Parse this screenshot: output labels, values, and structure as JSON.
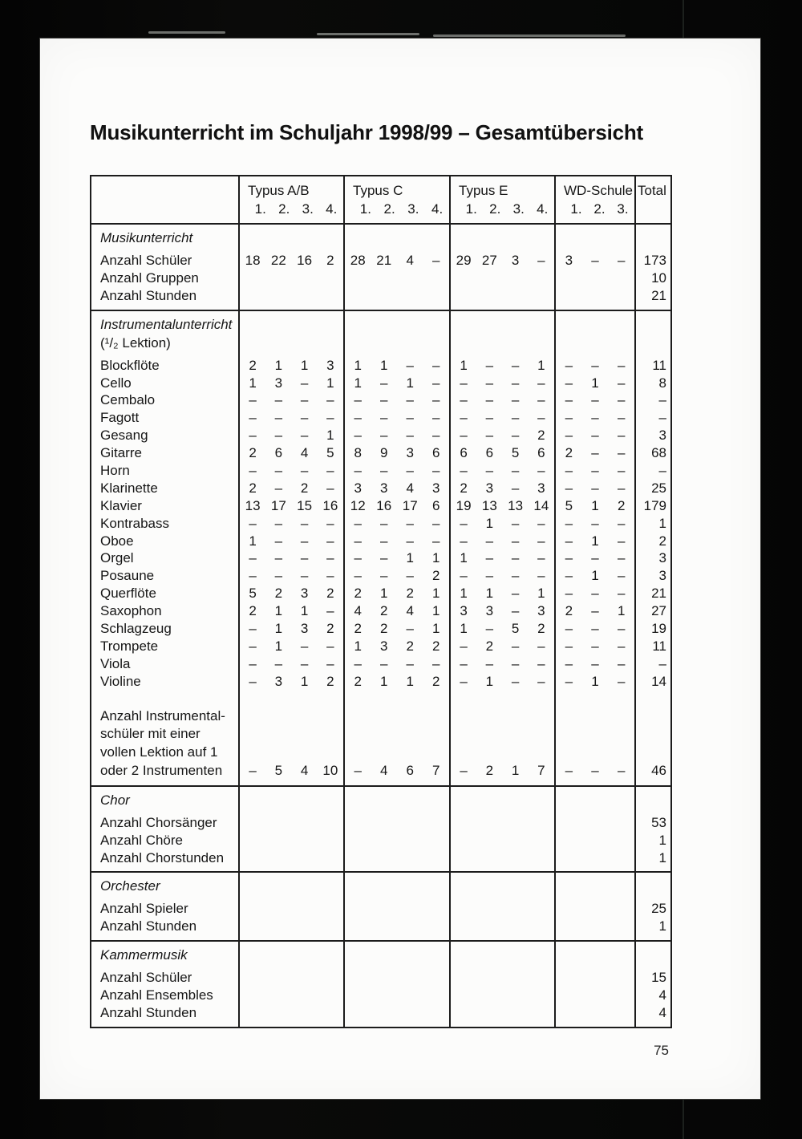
{
  "page": {
    "title": "Musikunterricht im Schuljahr 1998/99 – Gesamtübersicht",
    "page_number": "75"
  },
  "table": {
    "header": {
      "groups": [
        {
          "label": "Typus A/B",
          "subs": [
            "1.",
            "2.",
            "3.",
            "4."
          ]
        },
        {
          "label": "Typus C",
          "subs": [
            "1.",
            "2.",
            "3.",
            "4."
          ]
        },
        {
          "label": "Typus E",
          "subs": [
            "1.",
            "2.",
            "3.",
            "4."
          ]
        },
        {
          "label": "WD-Schule",
          "subs": [
            "1.",
            "2.",
            "3."
          ]
        }
      ],
      "total_label": "Total"
    },
    "sections": [
      {
        "name": "musikunterricht",
        "title": "Musikunterricht",
        "rows": [
          {
            "label": "Anzahl Schüler",
            "values": [
              [
                "18",
                "22",
                "16",
                "2"
              ],
              [
                "28",
                "21",
                "4",
                "–"
              ],
              [
                "29",
                "27",
                "3",
                "–"
              ],
              [
                "3",
                "–",
                "–"
              ]
            ],
            "total": "173"
          },
          {
            "label": "Anzahl Gruppen",
            "total": "10"
          },
          {
            "label": "Anzahl Stunden",
            "total": "21"
          }
        ]
      },
      {
        "name": "instrumentalunterricht",
        "title": "Instrumentalunterricht",
        "subtitle": "(¹/₂ Lektion)",
        "rows": [
          {
            "label": "Blockflöte",
            "values": [
              [
                "2",
                "1",
                "1",
                "3"
              ],
              [
                "1",
                "1",
                "–",
                "–"
              ],
              [
                "1",
                "–",
                "–",
                "1"
              ],
              [
                "–",
                "–",
                "–"
              ]
            ],
            "total": "11"
          },
          {
            "label": "Cello",
            "values": [
              [
                "1",
                "3",
                "–",
                "1"
              ],
              [
                "1",
                "–",
                "1",
                "–"
              ],
              [
                "–",
                "–",
                "–",
                "–"
              ],
              [
                "–",
                "1",
                "–"
              ]
            ],
            "total": "8"
          },
          {
            "label": "Cembalo",
            "values": [
              [
                "–",
                "–",
                "–",
                "–"
              ],
              [
                "–",
                "–",
                "–",
                "–"
              ],
              [
                "–",
                "–",
                "–",
                "–"
              ],
              [
                "–",
                "–",
                "–"
              ]
            ],
            "total": "–"
          },
          {
            "label": "Fagott",
            "values": [
              [
                "–",
                "–",
                "–",
                "–"
              ],
              [
                "–",
                "–",
                "–",
                "–"
              ],
              [
                "–",
                "–",
                "–",
                "–"
              ],
              [
                "–",
                "–",
                "–"
              ]
            ],
            "total": "–"
          },
          {
            "label": "Gesang",
            "values": [
              [
                "–",
                "–",
                "–",
                "1"
              ],
              [
                "–",
                "–",
                "–",
                "–"
              ],
              [
                "–",
                "–",
                "–",
                "2"
              ],
              [
                "–",
                "–",
                "–"
              ]
            ],
            "total": "3"
          },
          {
            "label": "Gitarre",
            "values": [
              [
                "2",
                "6",
                "4",
                "5"
              ],
              [
                "8",
                "9",
                "3",
                "6"
              ],
              [
                "6",
                "6",
                "5",
                "6"
              ],
              [
                "2",
                "–",
                "–"
              ]
            ],
            "total": "68"
          },
          {
            "label": "Horn",
            "values": [
              [
                "–",
                "–",
                "–",
                "–"
              ],
              [
                "–",
                "–",
                "–",
                "–"
              ],
              [
                "–",
                "–",
                "–",
                "–"
              ],
              [
                "–",
                "–",
                "–"
              ]
            ],
            "total": "–"
          },
          {
            "label": "Klarinette",
            "values": [
              [
                "2",
                "–",
                "2",
                "–"
              ],
              [
                "3",
                "3",
                "4",
                "3"
              ],
              [
                "2",
                "3",
                "–",
                "3"
              ],
              [
                "–",
                "–",
                "–"
              ]
            ],
            "total": "25"
          },
          {
            "label": "Klavier",
            "values": [
              [
                "13",
                "17",
                "15",
                "16"
              ],
              [
                "12",
                "16",
                "17",
                "6"
              ],
              [
                "19",
                "13",
                "13",
                "14"
              ],
              [
                "5",
                "1",
                "2"
              ]
            ],
            "total": "179"
          },
          {
            "label": "Kontrabass",
            "values": [
              [
                "–",
                "–",
                "–",
                "–"
              ],
              [
                "–",
                "–",
                "–",
                "–"
              ],
              [
                "–",
                "1",
                "–",
                "–"
              ],
              [
                "–",
                "–",
                "–"
              ]
            ],
            "total": "1"
          },
          {
            "label": "Oboe",
            "values": [
              [
                "1",
                "–",
                "–",
                "–"
              ],
              [
                "–",
                "–",
                "–",
                "–"
              ],
              [
                "–",
                "–",
                "–",
                "–"
              ],
              [
                "–",
                "1",
                "–"
              ]
            ],
            "total": "2"
          },
          {
            "label": "Orgel",
            "values": [
              [
                "–",
                "–",
                "–",
                "–"
              ],
              [
                "–",
                "–",
                "1",
                "1"
              ],
              [
                "1",
                "–",
                "–",
                "–"
              ],
              [
                "–",
                "–",
                "–"
              ]
            ],
            "total": "3"
          },
          {
            "label": "Posaune",
            "values": [
              [
                "–",
                "–",
                "–",
                "–"
              ],
              [
                "–",
                "–",
                "–",
                "2"
              ],
              [
                "–",
                "–",
                "–",
                "–"
              ],
              [
                "–",
                "1",
                "–"
              ]
            ],
            "total": "3"
          },
          {
            "label": "Querflöte",
            "values": [
              [
                "5",
                "2",
                "3",
                "2"
              ],
              [
                "2",
                "1",
                "2",
                "1"
              ],
              [
                "1",
                "1",
                "–",
                "1"
              ],
              [
                "–",
                "–",
                "–"
              ]
            ],
            "total": "21"
          },
          {
            "label": "Saxophon",
            "values": [
              [
                "2",
                "1",
                "1",
                "–"
              ],
              [
                "4",
                "2",
                "4",
                "1"
              ],
              [
                "3",
                "3",
                "–",
                "3"
              ],
              [
                "2",
                "–",
                "1"
              ]
            ],
            "total": "27"
          },
          {
            "label": "Schlagzeug",
            "values": [
              [
                "–",
                "1",
                "3",
                "2"
              ],
              [
                "2",
                "2",
                "–",
                "1"
              ],
              [
                "1",
                "–",
                "5",
                "2"
              ],
              [
                "–",
                "–",
                "–"
              ]
            ],
            "total": "19"
          },
          {
            "label": "Trompete",
            "values": [
              [
                "–",
                "1",
                "–",
                "–"
              ],
              [
                "1",
                "3",
                "2",
                "2"
              ],
              [
                "–",
                "2",
                "–",
                "–"
              ],
              [
                "–",
                "–",
                "–"
              ]
            ],
            "total": "11"
          },
          {
            "label": "Viola",
            "values": [
              [
                "–",
                "–",
                "–",
                "–"
              ],
              [
                "–",
                "–",
                "–",
                "–"
              ],
              [
                "–",
                "–",
                "–",
                "–"
              ],
              [
                "–",
                "–",
                "–"
              ]
            ],
            "total": "–"
          },
          {
            "label": "Violine",
            "values": [
              [
                "–",
                "3",
                "1",
                "2"
              ],
              [
                "2",
                "1",
                "1",
                "2"
              ],
              [
                "–",
                "1",
                "–",
                "–"
              ],
              [
                "–",
                "1",
                "–"
              ]
            ],
            "total": "14"
          }
        ],
        "block_row": {
          "label_lines": [
            "Anzahl Instrumental-",
            "schüler mit einer",
            "vollen Lektion auf 1",
            "oder 2 Instrumenten"
          ],
          "values": [
            [
              "–",
              "5",
              "4",
              "10"
            ],
            [
              "–",
              "4",
              "6",
              "7"
            ],
            [
              "–",
              "2",
              "1",
              "7"
            ],
            [
              "–",
              "–",
              "–"
            ]
          ],
          "total": "46"
        }
      },
      {
        "name": "chor",
        "title": "Chor",
        "rows": [
          {
            "label": "Anzahl Chorsänger",
            "total": "53"
          },
          {
            "label": "Anzahl Chöre",
            "total": "1"
          },
          {
            "label": "Anzahl Chorstunden",
            "total": "1"
          }
        ]
      },
      {
        "name": "orchester",
        "title": "Orchester",
        "rows": [
          {
            "label": "Anzahl Spieler",
            "total": "25"
          },
          {
            "label": "Anzahl Stunden",
            "total": "1"
          }
        ]
      },
      {
        "name": "kammermusik",
        "title": "Kammermusik",
        "rows": [
          {
            "label": "Anzahl Schüler",
            "total": "15"
          },
          {
            "label": "Anzahl Ensembles",
            "total": "4"
          },
          {
            "label": "Anzahl Stunden",
            "total": "4"
          }
        ]
      }
    ]
  }
}
